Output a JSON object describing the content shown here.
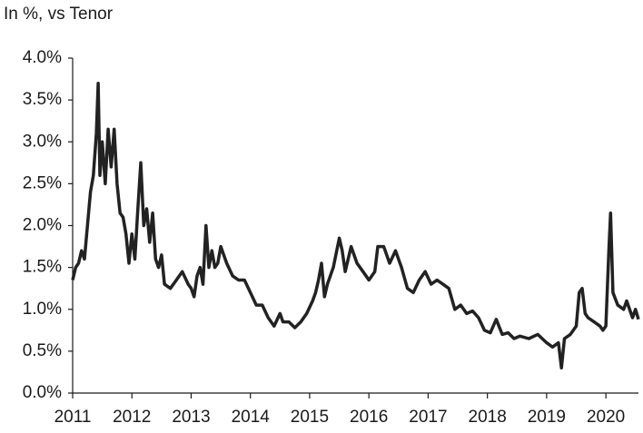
{
  "chart_data": {
    "type": "line",
    "title": "In %, vs Tenor",
    "x": [
      2011.0,
      2011.05,
      2011.1,
      2011.15,
      2011.2,
      2011.25,
      2011.3,
      2011.35,
      2011.4,
      2011.43,
      2011.46,
      2011.5,
      2011.55,
      2011.6,
      2011.65,
      2011.7,
      2011.75,
      2011.8,
      2011.85,
      2011.9,
      2011.95,
      2012.0,
      2012.05,
      2012.1,
      2012.15,
      2012.2,
      2012.25,
      2012.3,
      2012.35,
      2012.4,
      2012.45,
      2012.5,
      2012.55,
      2012.65,
      2012.75,
      2012.85,
      2012.95,
      2013.0,
      2013.05,
      2013.1,
      2013.15,
      2013.2,
      2013.25,
      2013.3,
      2013.35,
      2013.4,
      2013.45,
      2013.5,
      2013.6,
      2013.7,
      2013.8,
      2013.9,
      2014.0,
      2014.1,
      2014.2,
      2014.3,
      2014.4,
      2014.5,
      2014.55,
      2014.65,
      2014.75,
      2014.85,
      2014.95,
      2015.05,
      2015.1,
      2015.15,
      2015.2,
      2015.25,
      2015.3,
      2015.4,
      2015.5,
      2015.55,
      2015.6,
      2015.7,
      2015.8,
      2015.9,
      2016.0,
      2016.1,
      2016.15,
      2016.25,
      2016.35,
      2016.45,
      2016.55,
      2016.65,
      2016.75,
      2016.85,
      2016.95,
      2017.05,
      2017.15,
      2017.25,
      2017.35,
      2017.45,
      2017.55,
      2017.65,
      2017.75,
      2017.85,
      2017.95,
      2018.05,
      2018.15,
      2018.25,
      2018.35,
      2018.45,
      2018.55,
      2018.7,
      2018.85,
      2019.0,
      2019.1,
      2019.2,
      2019.25,
      2019.3,
      2019.4,
      2019.5,
      2019.55,
      2019.6,
      2019.65,
      2019.7,
      2019.8,
      2019.9,
      2019.95,
      2020.0,
      2020.05,
      2020.08,
      2020.12,
      2020.2,
      2020.3,
      2020.35,
      2020.45,
      2020.5,
      2020.55
    ],
    "series": [
      {
        "color": "#222222",
        "values": [
          1.35,
          1.5,
          1.55,
          1.7,
          1.6,
          2.0,
          2.4,
          2.6,
          3.1,
          3.7,
          2.6,
          3.0,
          2.5,
          3.15,
          2.7,
          3.15,
          2.5,
          2.15,
          2.1,
          1.9,
          1.55,
          1.9,
          1.6,
          2.2,
          2.75,
          2.0,
          2.2,
          1.8,
          2.15,
          1.6,
          1.5,
          1.65,
          1.3,
          1.25,
          1.35,
          1.45,
          1.3,
          1.25,
          1.15,
          1.4,
          1.5,
          1.3,
          2.0,
          1.5,
          1.7,
          1.5,
          1.55,
          1.75,
          1.55,
          1.4,
          1.35,
          1.35,
          1.2,
          1.05,
          1.05,
          0.9,
          0.8,
          0.95,
          0.85,
          0.85,
          0.78,
          0.85,
          0.95,
          1.1,
          1.2,
          1.35,
          1.55,
          1.15,
          1.3,
          1.5,
          1.85,
          1.7,
          1.45,
          1.75,
          1.55,
          1.45,
          1.35,
          1.45,
          1.75,
          1.75,
          1.55,
          1.7,
          1.5,
          1.25,
          1.2,
          1.35,
          1.45,
          1.3,
          1.35,
          1.3,
          1.25,
          1.0,
          1.05,
          0.95,
          0.98,
          0.9,
          0.75,
          0.72,
          0.88,
          0.7,
          0.72,
          0.65,
          0.68,
          0.65,
          0.7,
          0.6,
          0.55,
          0.6,
          0.3,
          0.65,
          0.7,
          0.8,
          1.2,
          1.25,
          0.95,
          0.9,
          0.85,
          0.8,
          0.75,
          0.8,
          1.7,
          2.15,
          1.2,
          1.05,
          1.0,
          1.1,
          0.9,
          1.0,
          0.88
        ]
      }
    ],
    "xlim": [
      2011,
      2020.55
    ],
    "xticks": [
      2011,
      2012,
      2013,
      2014,
      2015,
      2016,
      2017,
      2018,
      2019,
      2020
    ],
    "ylim": [
      0,
      4
    ],
    "yticks": [
      {
        "value": 0,
        "label": "0.0%"
      },
      {
        "value": 0.5,
        "label": "0.5%"
      },
      {
        "value": 1,
        "label": "1.0%"
      },
      {
        "value": 1.5,
        "label": "1.5%"
      },
      {
        "value": 2,
        "label": "2.0%"
      },
      {
        "value": 2.5,
        "label": "2.5%"
      },
      {
        "value": 3,
        "label": "3.0%"
      },
      {
        "value": 3.5,
        "label": "3.5%"
      },
      {
        "value": 4,
        "label": "4.0%"
      }
    ],
    "grid": false
  }
}
